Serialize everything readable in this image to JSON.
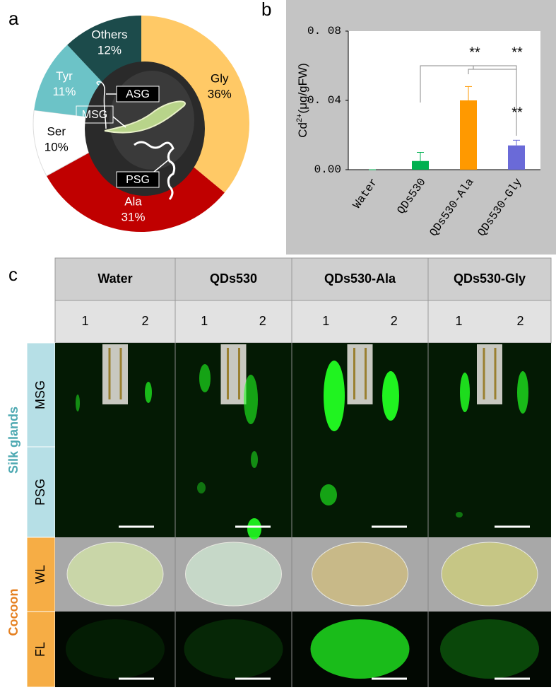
{
  "panel_labels": [
    "a",
    "b",
    "c"
  ],
  "chart_data": [
    {
      "type": "pie",
      "categories": [
        "Gly",
        "Ala",
        "Ser",
        "Tyr",
        "Others"
      ],
      "values": [
        36,
        31,
        10,
        11,
        12
      ],
      "value_labels": [
        "36%",
        "31%",
        "10%",
        "11%",
        "12%"
      ],
      "colors": [
        "#ffc966",
        "#c00000",
        "#ffffff",
        "#6cc3c7",
        "#1c4b4b"
      ],
      "annotations": [
        "ASG",
        "MSG",
        "PSG"
      ]
    },
    {
      "type": "bar",
      "ylabel": [
        "Cd",
        "2+",
        "(μg/gFW)"
      ],
      "categories": [
        "Water",
        "QDs530",
        "QDs530-Ala",
        "QDs530-Gly"
      ],
      "values": [
        0,
        0.005,
        0.04,
        0.014
      ],
      "errors": [
        0,
        0.005,
        0.008,
        0.003
      ],
      "colors": [
        "#00b050",
        "#00b050",
        "#ff9900",
        "#6a6ad8"
      ],
      "ylim": [
        0,
        0.08
      ],
      "yticks": [
        {
          "value": 0,
          "label": "0.00"
        },
        {
          "value": 0.04,
          "label": "0. 04"
        },
        {
          "value": 0.08,
          "label": "0. 08"
        }
      ],
      "annotations": [
        "**",
        "**",
        "**"
      ]
    }
  ],
  "panel_c": {
    "columns": [
      "Water",
      "QDs530",
      "QDs530-Ala",
      "QDs530-Gly"
    ],
    "replicates": [
      "1",
      "2"
    ],
    "groups": [
      {
        "name": "Silk glands",
        "rows": [
          "MSG",
          "PSG"
        ]
      },
      {
        "name": "Cocoon",
        "rows": [
          "WL",
          "FL"
        ]
      }
    ]
  }
}
